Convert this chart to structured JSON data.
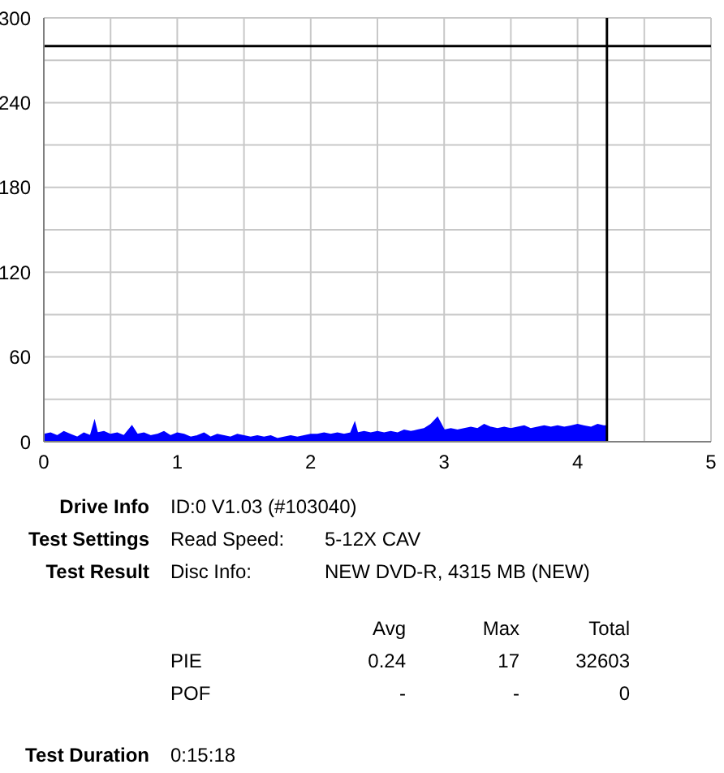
{
  "chart_data": {
    "type": "area",
    "x": [
      0,
      0.05,
      0.1,
      0.15,
      0.2,
      0.25,
      0.3,
      0.35,
      0.38,
      0.4,
      0.45,
      0.5,
      0.55,
      0.6,
      0.66,
      0.7,
      0.75,
      0.8,
      0.85,
      0.9,
      0.95,
      1,
      1.05,
      1.1,
      1.15,
      1.2,
      1.25,
      1.3,
      1.35,
      1.4,
      1.45,
      1.5,
      1.55,
      1.6,
      1.65,
      1.7,
      1.75,
      1.8,
      1.85,
      1.9,
      1.95,
      2,
      2.05,
      2.1,
      2.15,
      2.2,
      2.25,
      2.3,
      2.33,
      2.35,
      2.4,
      2.45,
      2.5,
      2.55,
      2.6,
      2.65,
      2.7,
      2.75,
      2.8,
      2.85,
      2.9,
      2.95,
      3,
      3.05,
      3.1,
      3.15,
      3.2,
      3.25,
      3.3,
      3.35,
      3.4,
      3.45,
      3.5,
      3.55,
      3.6,
      3.65,
      3.7,
      3.75,
      3.8,
      3.85,
      3.9,
      3.95,
      4,
      4.05,
      4.1,
      4.15,
      4.2,
      4.22
    ],
    "series": [
      {
        "color": "#0000ff",
        "values": [
          5,
          6,
          4,
          7,
          5,
          3,
          6,
          4,
          14,
          6,
          7,
          5,
          6,
          4,
          11,
          5,
          6,
          4,
          5,
          7,
          4,
          6,
          5,
          3,
          4,
          6,
          3,
          5,
          4,
          3,
          5,
          4,
          3,
          4,
          3,
          4,
          2,
          3,
          4,
          3,
          4,
          5,
          5,
          6,
          5,
          6,
          5,
          6,
          13,
          6,
          7,
          6,
          7,
          6,
          7,
          6,
          8,
          7,
          8,
          9,
          12,
          17,
          8,
          9,
          8,
          9,
          10,
          9,
          12,
          10,
          9,
          10,
          9,
          10,
          11,
          9,
          10,
          11,
          10,
          11,
          10,
          11,
          12,
          11,
          10,
          12,
          11,
          11
        ]
      }
    ],
    "xlim": [
      0,
      5
    ],
    "xticks": [
      0,
      {
        "value": 0.5,
        "label": null
      },
      1,
      {
        "value": 1.5,
        "label": null
      },
      2,
      {
        "value": 2.5,
        "label": null
      },
      3,
      {
        "value": 3.5,
        "label": null
      },
      4,
      {
        "value": 4.5,
        "label": null
      },
      5
    ],
    "ylim": [
      0,
      300
    ],
    "yticks": [
      0,
      {
        "value": 30,
        "label": null
      },
      60,
      {
        "value": 90,
        "label": null
      },
      120,
      {
        "value": 150,
        "label": null
      },
      180,
      {
        "value": 210,
        "label": null
      },
      240,
      {
        "value": 270,
        "label": null
      },
      300
    ],
    "grid": true,
    "ref_lines": [
      {
        "axis": "y",
        "value": 280,
        "color": "#000000"
      },
      {
        "axis": "x",
        "value": 4.22,
        "color": "#000000"
      }
    ],
    "annotations": [
      "Drive Info",
      "ID:0 V1.03 (#103040)",
      "Test Settings",
      "Read Speed:",
      "5-12X CAV",
      "Test Result",
      "Disc Info:",
      "NEW DVD-R, 4315 MB (NEW)",
      "Avg",
      "Max",
      "Total",
      "PIE",
      "0.24",
      "17",
      "32603",
      "POF",
      "-",
      "-",
      "0",
      "Test Duration",
      "0:15:18"
    ]
  }
}
